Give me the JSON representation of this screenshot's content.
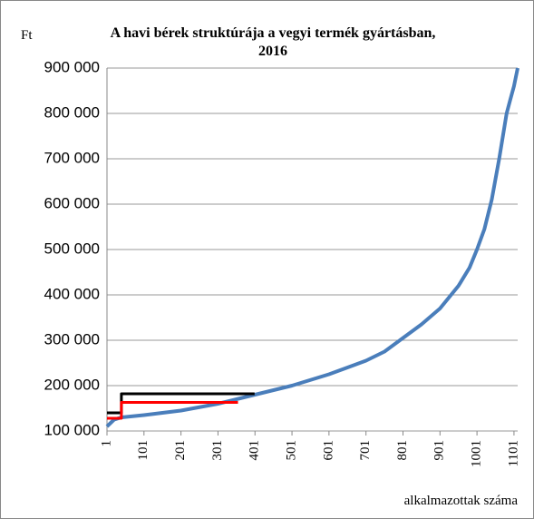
{
  "chart_data": {
    "type": "line",
    "title": "A havi bérek struktúrája a vegyi termék gyártásban, 2016",
    "y_unit": "Ft",
    "x_label": "alkalmazottak száma",
    "xlim": [
      1,
      1111
    ],
    "xticks": [
      1,
      101,
      201,
      301,
      401,
      501,
      601,
      701,
      801,
      901,
      1001,
      1101
    ],
    "ylim": [
      100000,
      900000
    ],
    "yticks": [
      {
        "value": 100000,
        "label": "100 000"
      },
      {
        "value": 200000,
        "label": "200 000"
      },
      {
        "value": 300000,
        "label": "300 000"
      },
      {
        "value": 400000,
        "label": "400 000"
      },
      {
        "value": 500000,
        "label": "500 000"
      },
      {
        "value": 600000,
        "label": "600 000"
      },
      {
        "value": 700000,
        "label": "700 000"
      },
      {
        "value": 800000,
        "label": "800 000"
      },
      {
        "value": 900000,
        "label": "900 000"
      }
    ],
    "grid": true,
    "series": [
      {
        "color": "#000000",
        "width": 3,
        "x": [
          1,
          40,
          40,
          400
        ],
        "y": [
          140000,
          140000,
          182000,
          182000
        ]
      },
      {
        "color": "#ff0000",
        "width": 3,
        "x": [
          1,
          40,
          40,
          355
        ],
        "y": [
          128000,
          128000,
          163000,
          163000
        ]
      },
      {
        "color": "#4a7ebb",
        "width": 4,
        "x": [
          1,
          20,
          40,
          101,
          201,
          301,
          401,
          501,
          601,
          701,
          751,
          801,
          851,
          901,
          951,
          981,
          1001,
          1021,
          1041,
          1061,
          1071,
          1081,
          1091,
          1101,
          1111
        ],
        "y": [
          110000,
          125000,
          130000,
          135000,
          145000,
          160000,
          180000,
          200000,
          225000,
          255000,
          275000,
          305000,
          335000,
          370000,
          420000,
          460000,
          500000,
          545000,
          610000,
          700000,
          750000,
          800000,
          830000,
          860000,
          900000
        ]
      }
    ]
  }
}
